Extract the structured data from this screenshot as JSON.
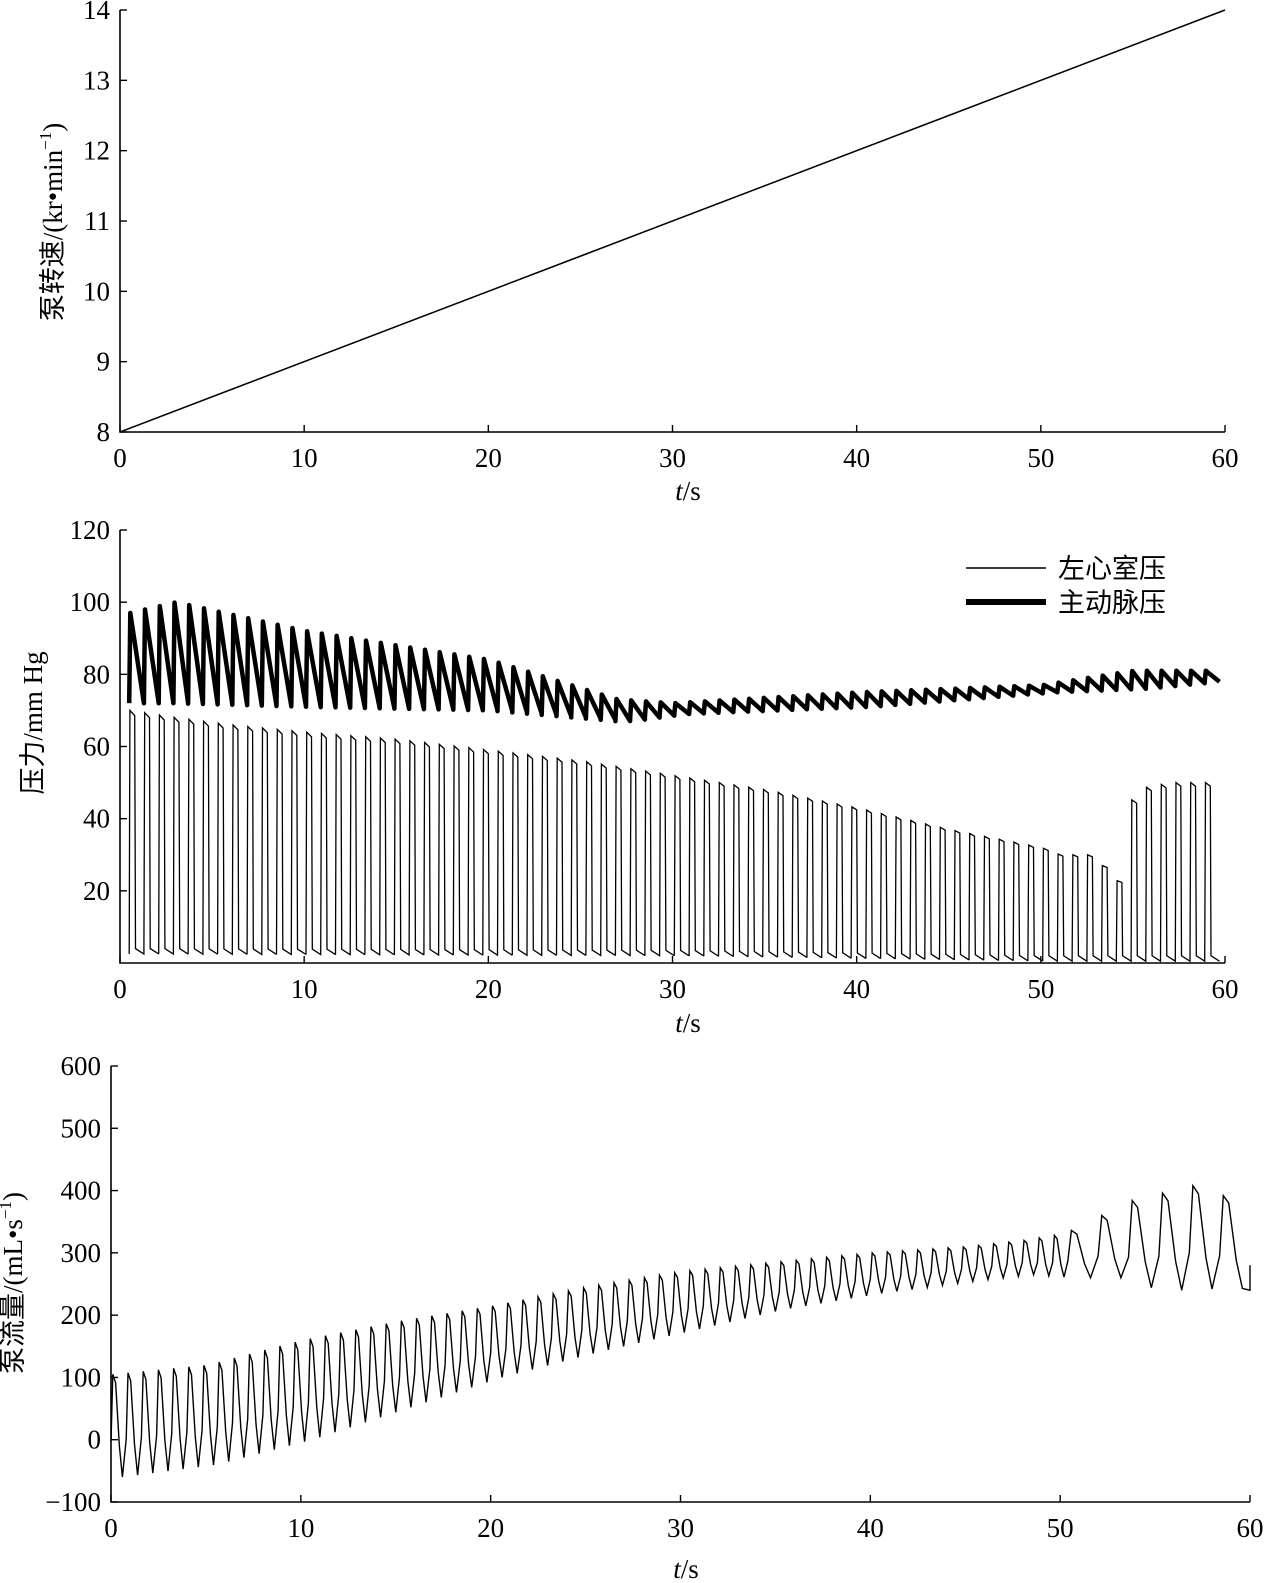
{
  "colors": {
    "line": "#000000",
    "background": "#ffffff"
  },
  "chart_data": [
    {
      "type": "line",
      "ylabel": "泵转速/(kr•min",
      "ylabel_sup": "−1",
      "ylabel_close": ")",
      "xlabel_italic": "t",
      "xlabel_rest": "/s",
      "xlim": [
        0,
        60
      ],
      "ylim": [
        8,
        14
      ],
      "xticks": [
        "0",
        "10",
        "20",
        "30",
        "40",
        "50",
        "60"
      ],
      "yticks": [
        "8",
        "9",
        "10",
        "11",
        "12",
        "13",
        "14"
      ],
      "grid": false,
      "series": [
        {
          "x": [
            0,
            60
          ],
          "y": [
            8,
            14
          ]
        }
      ]
    },
    {
      "type": "line",
      "ylabel": "压力/mm Hg",
      "xlabel_italic": "t",
      "xlabel_rest": "/s",
      "xlim": [
        0,
        60
      ],
      "ylim": [
        0,
        120
      ],
      "xticks": [
        "0",
        "10",
        "20",
        "30",
        "40",
        "50",
        "60"
      ],
      "yticks": [
        "20",
        "40",
        "60",
        "80",
        "100",
        "120"
      ],
      "grid": false,
      "legend_position": "top-right",
      "beat_period_s": 0.8,
      "series": [
        {
          "name": "左心室压",
          "style": "thin",
          "peak_envelope": {
            "t": [
              0.5,
              3,
              6,
              10,
              15,
              20,
              25,
              30,
              35,
              40,
              45,
              48,
              50,
              51,
              52,
              53,
              54,
              55,
              57,
              58.5
            ],
            "v": [
              70,
              68,
              66,
              64,
              62,
              59,
              56,
              52,
              48,
              43,
              37,
              34,
              32,
              30,
              30,
              30,
              20,
              48,
              50,
              50
            ]
          },
          "baseline_envelope": {
            "t": [
              0.5,
              30,
              50,
              55,
              59
            ],
            "v": [
              2.5,
              2,
              0.5,
              0.5,
              0.5
            ]
          }
        },
        {
          "name": "主动脉压",
          "style": "thick",
          "max_envelope": {
            "t": [
              0.5,
              3,
              10,
              20,
              27,
              30,
              40,
              45,
              50,
              55,
              59
            ],
            "v": [
              97,
              100,
              92,
              84,
              73,
              72,
              75,
              76,
              77,
              81,
              81
            ]
          },
          "min_envelope": {
            "t": [
              0.5,
              3,
              10,
              20,
              27,
              30,
              40,
              45,
              50,
              55,
              59
            ],
            "v": [
              72,
              72,
              71,
              70,
              67,
              69,
              71,
              73,
              75,
              76,
              78
            ]
          }
        }
      ]
    },
    {
      "type": "line",
      "ylabel": "泵流量/(mL•s",
      "ylabel_sup": "−1",
      "ylabel_close": ")",
      "xlabel_italic": "t",
      "xlabel_rest": "/s",
      "xlim": [
        0,
        60
      ],
      "ylim": [
        -100,
        600
      ],
      "xticks": [
        "0",
        "10",
        "20",
        "30",
        "40",
        "50",
        "60"
      ],
      "yticks": [
        "−100",
        "0",
        "100",
        "200",
        "300",
        "400",
        "500",
        "600"
      ],
      "grid": false,
      "series": [
        {
          "max_envelope": {
            "t": [
              0,
              5,
              10,
              15,
              20,
              25,
              30,
              35,
              40,
              45,
              48,
              50,
              52,
              54,
              56,
              58,
              59
            ],
            "v": [
              105,
              120,
              160,
              190,
              215,
              245,
              270,
              285,
              300,
              310,
              320,
              330,
              360,
              390,
              400,
              420,
              350
            ]
          },
          "min_envelope": {
            "t": [
              0,
              5,
              10,
              15,
              20,
              25,
              30,
              35,
              40,
              45,
              48,
              50,
              52,
              54,
              56,
              58,
              59
            ],
            "v": [
              -60,
              -40,
              0,
              50,
              100,
              140,
              175,
              210,
              235,
              255,
              265,
              260,
              260,
              240,
              240,
              245,
              240
            ]
          },
          "end_value": 280
        }
      ]
    }
  ]
}
